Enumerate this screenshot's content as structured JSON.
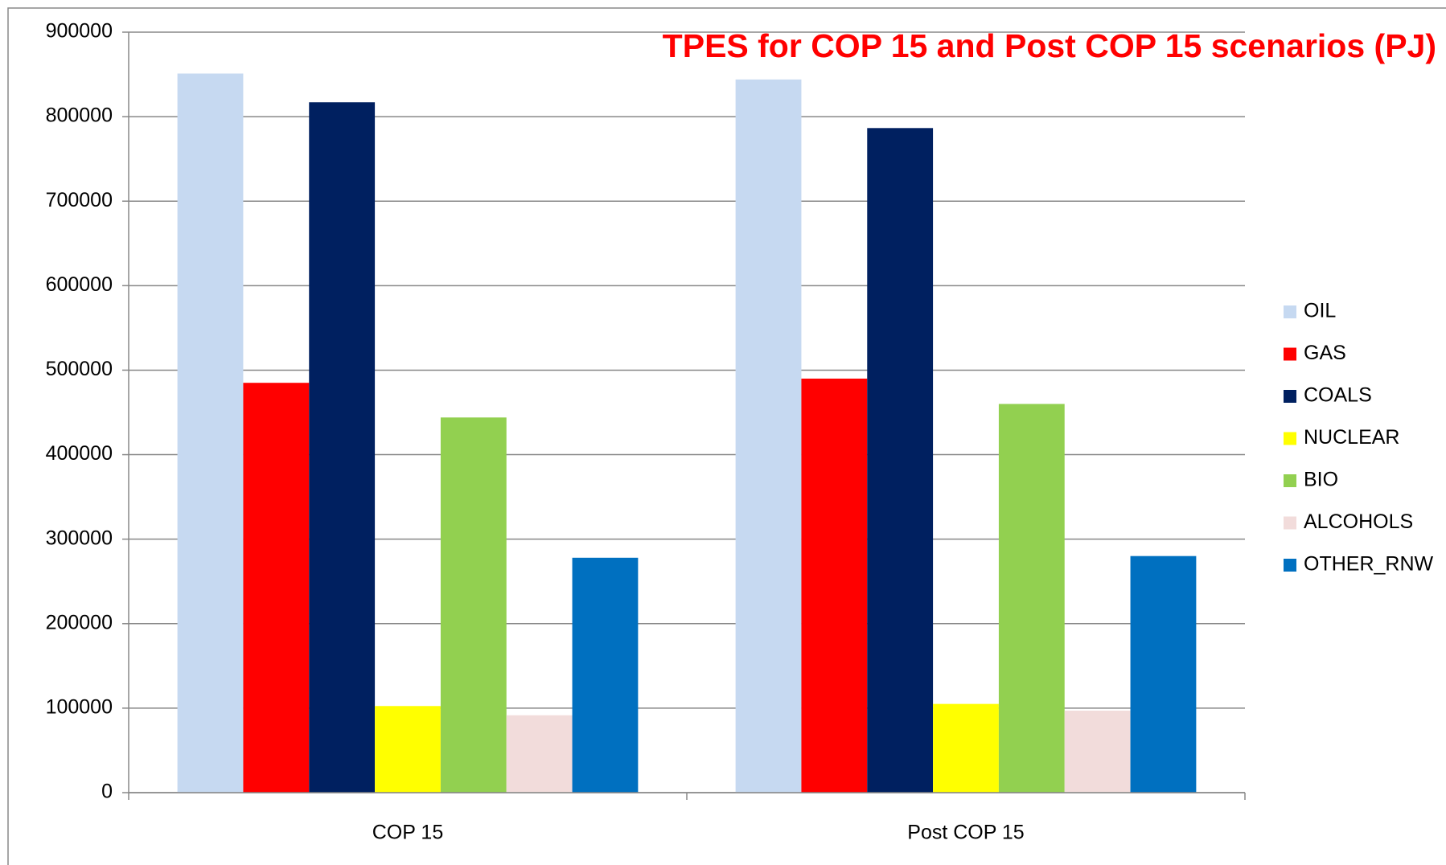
{
  "chart_data": {
    "type": "bar",
    "title": "TPES for COP 15 and Post COP 15 scenarios (PJ)",
    "categories": [
      "COP 15",
      "Post COP 15"
    ],
    "series": [
      {
        "name": "OIL",
        "color": "#c6d9f1",
        "values": [
          851000,
          844000
        ]
      },
      {
        "name": "GAS",
        "color": "#ff0000",
        "values": [
          485000,
          490000
        ]
      },
      {
        "name": "COALS",
        "color": "#002060",
        "values": [
          817000,
          786500
        ]
      },
      {
        "name": "NUCLEAR",
        "color": "#ffff00",
        "values": [
          102500,
          105000
        ]
      },
      {
        "name": "BIO",
        "color": "#92d050",
        "values": [
          444000,
          460000
        ]
      },
      {
        "name": "ALCOHOLS",
        "color": "#f2dcdb",
        "values": [
          91600,
          97000
        ]
      },
      {
        "name": "OTHER_RNW",
        "color": "#0070c0",
        "values": [
          278000,
          280000
        ]
      }
    ],
    "ylim": [
      0,
      900000
    ],
    "yticks": [
      0,
      100000,
      200000,
      300000,
      400000,
      500000,
      600000,
      700000,
      800000,
      900000
    ],
    "grid": true,
    "legend": "right"
  }
}
